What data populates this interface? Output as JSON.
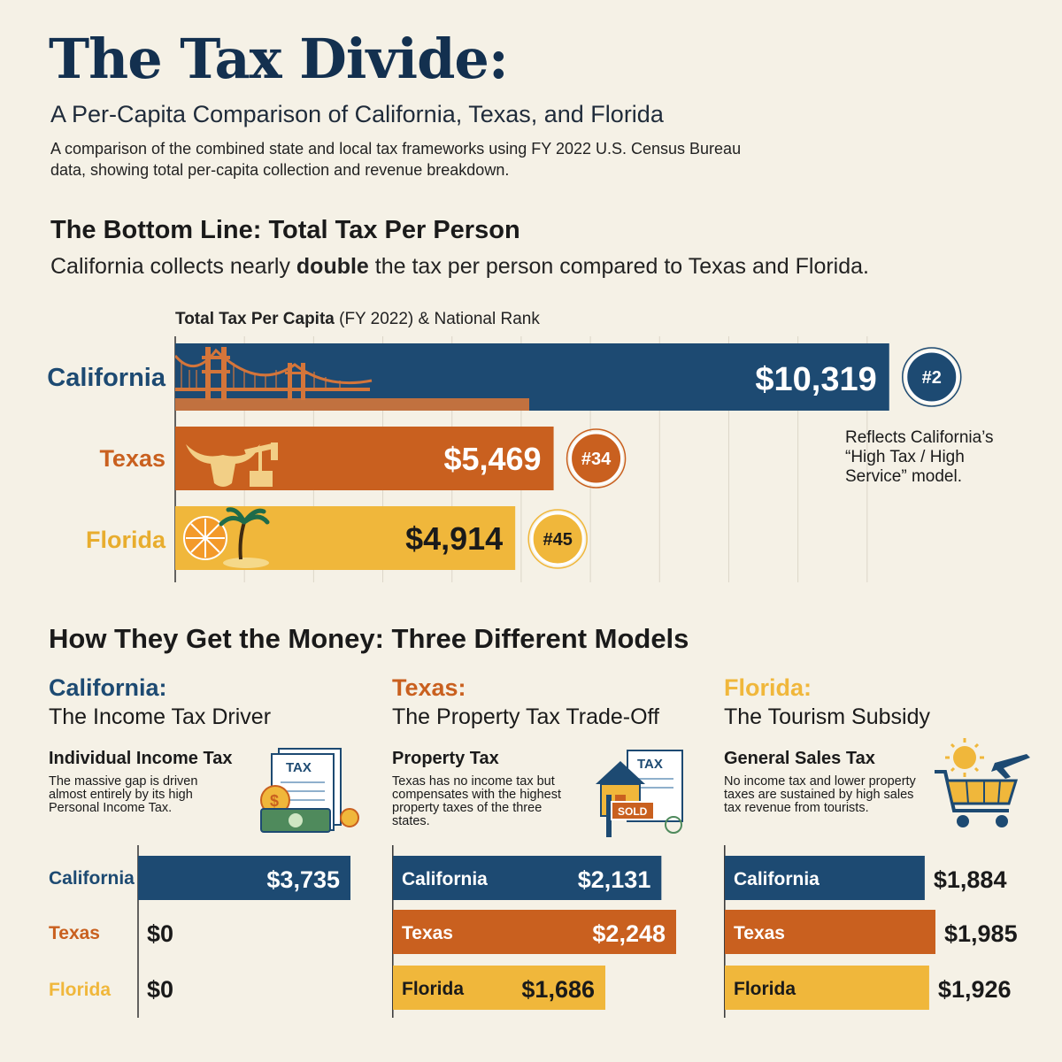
{
  "header": {
    "title": "The Tax Divide:",
    "subtitle": "A Per-Capita Comparison of California, Texas, and Florida",
    "description": "A comparison of the combined state and local tax frameworks using FY 2022 U.S. Census Bureau data, showing total per-capita collection and revenue breakdown."
  },
  "bottom_line": {
    "heading": "The Bottom Line: Total Tax Per Person",
    "sub_pre": "California collects nearly ",
    "sub_bold": "double",
    "sub_post": " the tax per person compared to Texas and Florida.",
    "axis_label_bold": "Total Tax Per Capita",
    "axis_label_rest": " (FY 2022) & National Rank",
    "annotation_lines": [
      "Reflects California’s",
      "“High Tax / High",
      "Service” model."
    ]
  },
  "models": {
    "heading": "How They Get the Money: Three Different Models"
  },
  "colors": {
    "california": "#1d4a72",
    "texas": "#c9601f",
    "florida": "#f0b73b",
    "background": "#f5f1e6"
  },
  "chart_data": [
    {
      "type": "bar",
      "title": "Total Tax Per Capita (FY 2022) & National Rank",
      "categories": [
        "California",
        "Texas",
        "Florida"
      ],
      "values": [
        10319,
        5469,
        4914
      ],
      "value_labels": [
        "$10,319",
        "$5,469",
        "$4,914"
      ],
      "ranks": [
        "#2",
        "#34",
        "#45"
      ],
      "xlim": [
        0,
        11000
      ]
    },
    {
      "type": "bar",
      "state": "California:",
      "model": "The Income Tax Driver",
      "tax_name": "Individual Income Tax",
      "description": "The massive gap is driven almost entirely by its high Personal Income Tax.",
      "categories": [
        "California",
        "Texas",
        "Florida"
      ],
      "values": [
        3735,
        0,
        0
      ],
      "value_labels": [
        "$3,735",
        "$0",
        "$0"
      ]
    },
    {
      "type": "bar",
      "state": "Texas:",
      "model": "The Property Tax Trade-Off",
      "tax_name": "Property Tax",
      "description": "Texas has no income tax but compensates with the highest property taxes of the three states.",
      "categories": [
        "California",
        "Texas",
        "Florida"
      ],
      "values": [
        2131,
        2248,
        1686
      ],
      "value_labels": [
        "$2,131",
        "$2,248",
        "$1,686"
      ]
    },
    {
      "type": "bar",
      "state": "Florida:",
      "model": "The Tourism Subsidy",
      "tax_name": "General Sales Tax",
      "description": "No income tax and lower property taxes are sustained by high sales tax revenue from tourists.",
      "categories": [
        "California",
        "Texas",
        "Florida"
      ],
      "values": [
        1884,
        1985,
        1926
      ],
      "value_labels": [
        "$1,884",
        "$1,985",
        "$1,926"
      ]
    }
  ],
  "icons": {
    "income": "tax-document-money-icon",
    "property": "house-sold-tax-icon",
    "sales": "shopping-cart-sun-plane-icon",
    "icon_text": {
      "tax": "TAX",
      "sold": "SOLD"
    }
  }
}
